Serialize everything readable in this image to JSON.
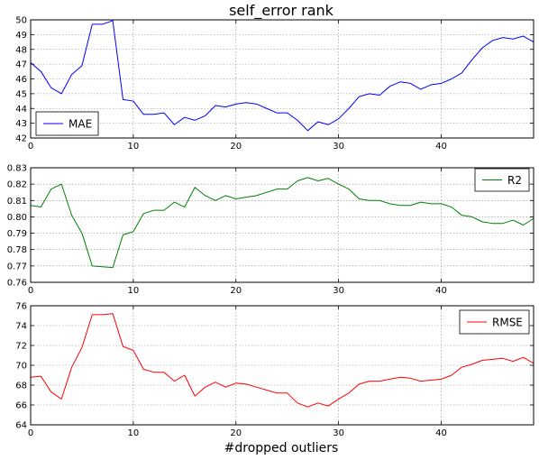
{
  "chart_data": [
    {
      "type": "line",
      "title": "self_error rank",
      "xlabel": "",
      "ylabel": "",
      "xlim": [
        0,
        49
      ],
      "ylim": [
        42,
        50
      ],
      "xticks": [
        0,
        10,
        20,
        30,
        40
      ],
      "yticks": [
        42,
        43,
        44,
        45,
        46,
        47,
        48,
        49,
        50
      ],
      "grid": true,
      "legend_position": "lower-left",
      "x": [
        0,
        1,
        2,
        3,
        4,
        5,
        6,
        7,
        8,
        9,
        10,
        11,
        12,
        13,
        14,
        15,
        16,
        17,
        18,
        19,
        20,
        21,
        22,
        23,
        24,
        25,
        26,
        27,
        28,
        29,
        30,
        31,
        32,
        33,
        34,
        35,
        36,
        37,
        38,
        39,
        40,
        41,
        42,
        43,
        44,
        45,
        46,
        47,
        48,
        49
      ],
      "series": [
        {
          "name": "MAE",
          "color": "#0000ff",
          "values": [
            47.1,
            46.5,
            45.4,
            45.0,
            46.3,
            46.9,
            49.7,
            49.7,
            49.95,
            44.6,
            44.5,
            43.6,
            43.6,
            43.7,
            42.9,
            43.4,
            43.2,
            43.5,
            44.2,
            44.1,
            44.3,
            44.4,
            44.3,
            44.0,
            43.7,
            43.7,
            43.2,
            42.5,
            43.1,
            42.9,
            43.3,
            44.0,
            44.8,
            45.0,
            44.9,
            45.5,
            45.8,
            45.7,
            45.3,
            45.6,
            45.7,
            46.0,
            46.4,
            47.3,
            48.1,
            48.6,
            48.8,
            48.7,
            48.9,
            48.5
          ]
        }
      ]
    },
    {
      "type": "line",
      "title": "",
      "xlabel": "",
      "ylabel": "",
      "xlim": [
        0,
        49
      ],
      "ylim": [
        0.76,
        0.83
      ],
      "xticks": [
        0,
        10,
        20,
        30,
        40
      ],
      "yticks": [
        "0.76",
        "0.77",
        "0.78",
        "0.79",
        "0.80",
        "0.81",
        "0.82",
        "0.83"
      ],
      "grid": true,
      "legend_position": "upper-right",
      "x": [
        0,
        1,
        2,
        3,
        4,
        5,
        6,
        7,
        8,
        9,
        10,
        11,
        12,
        13,
        14,
        15,
        16,
        17,
        18,
        19,
        20,
        21,
        22,
        23,
        24,
        25,
        26,
        27,
        28,
        29,
        30,
        31,
        32,
        33,
        34,
        35,
        36,
        37,
        38,
        39,
        40,
        41,
        42,
        43,
        44,
        45,
        46,
        47,
        48,
        49
      ],
      "series": [
        {
          "name": "R2",
          "color": "#008000",
          "values": [
            0.807,
            0.806,
            0.817,
            0.82,
            0.801,
            0.79,
            0.77,
            0.7695,
            0.769,
            0.789,
            0.791,
            0.802,
            0.804,
            0.804,
            0.809,
            0.806,
            0.818,
            0.813,
            0.81,
            0.813,
            0.811,
            0.812,
            0.813,
            0.815,
            0.817,
            0.817,
            0.822,
            0.824,
            0.822,
            0.8235,
            0.82,
            0.817,
            0.811,
            0.81,
            0.81,
            0.808,
            0.807,
            0.807,
            0.809,
            0.808,
            0.808,
            0.806,
            0.801,
            0.8,
            0.797,
            0.796,
            0.796,
            0.798,
            0.795,
            0.799
          ]
        }
      ]
    },
    {
      "type": "line",
      "title": "",
      "xlabel": "#dropped outliers",
      "ylabel": "",
      "xlim": [
        0,
        49
      ],
      "ylim": [
        64,
        76
      ],
      "xticks": [
        0,
        10,
        20,
        30,
        40
      ],
      "yticks": [
        64,
        66,
        68,
        70,
        72,
        74,
        76
      ],
      "grid": true,
      "legend_position": "upper-right",
      "x": [
        0,
        1,
        2,
        3,
        4,
        5,
        6,
        7,
        8,
        9,
        10,
        11,
        12,
        13,
        14,
        15,
        16,
        17,
        18,
        19,
        20,
        21,
        22,
        23,
        24,
        25,
        26,
        27,
        28,
        29,
        30,
        31,
        32,
        33,
        34,
        35,
        36,
        37,
        38,
        39,
        40,
        41,
        42,
        43,
        44,
        45,
        46,
        47,
        48,
        49
      ],
      "series": [
        {
          "name": "RMSE",
          "color": "#ff0000",
          "values": [
            68.8,
            68.9,
            67.3,
            66.6,
            69.8,
            71.8,
            75.1,
            75.1,
            75.2,
            71.9,
            71.5,
            69.6,
            69.3,
            69.3,
            68.4,
            69.0,
            66.9,
            67.8,
            68.3,
            67.8,
            68.2,
            68.1,
            67.8,
            67.5,
            67.2,
            67.2,
            66.2,
            65.8,
            66.2,
            65.9,
            66.6,
            67.2,
            68.1,
            68.4,
            68.4,
            68.6,
            68.8,
            68.7,
            68.4,
            68.5,
            68.6,
            69.0,
            69.8,
            70.1,
            70.5,
            70.6,
            70.7,
            70.4,
            70.8,
            70.2
          ]
        }
      ]
    }
  ]
}
